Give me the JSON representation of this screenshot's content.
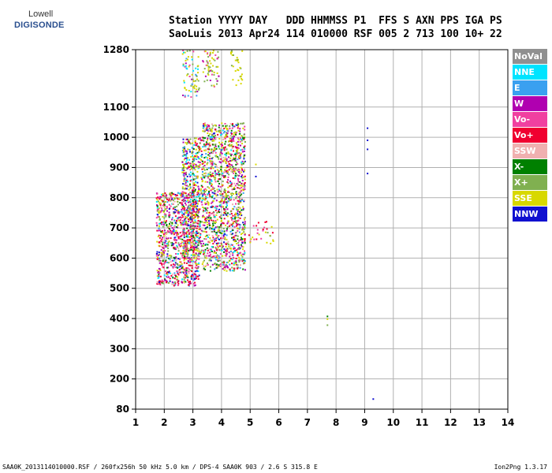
{
  "logo": {
    "line1": "Lowell",
    "line2": "DIGISONDE"
  },
  "header": {
    "line1": "Station YYYY DAY   DDD HHMMSS P1  FFS S AXN PPS IGA PS",
    "line2": "SaoLuis 2013 Apr24 114 010000 RSF 005 2 713 100 10+ 22"
  },
  "footer": {
    "left": "SAA0K_2013114010000.RSF / 260fx256h 50 kHz 5.0 km / DPS-4 SAA0K 903 / 2.6 S 315.8 E",
    "right": "Ion2Png 1.3.17"
  },
  "legend": [
    {
      "label": "NoVal",
      "color": "#909090"
    },
    {
      "label": "NNE",
      "color": "#00e4ff"
    },
    {
      "label": "E",
      "color": "#3aa0f0"
    },
    {
      "label": "W",
      "color": "#b000b0"
    },
    {
      "label": "Vo-",
      "color": "#f040a0"
    },
    {
      "label": "Vo+",
      "color": "#f00030"
    },
    {
      "label": "SSW",
      "color": "#f0b0b0"
    },
    {
      "label": "X-",
      "color": "#008000"
    },
    {
      "label": "X+",
      "color": "#80b050"
    },
    {
      "label": "SSE",
      "color": "#d8d800"
    },
    {
      "label": "NNW",
      "color": "#1010d0"
    }
  ],
  "chart_data": {
    "type": "scatter",
    "xlabel": "",
    "ylabel": "",
    "x_ticks": [
      1,
      2,
      3,
      4,
      5,
      6,
      7,
      8,
      9,
      10,
      11,
      12,
      13,
      14
    ],
    "y_ticks": [
      80,
      200,
      300,
      400,
      500,
      600,
      700,
      800,
      900,
      1000,
      1100,
      1280
    ],
    "xlim": [
      1,
      14
    ],
    "ylim": [
      80,
      1280
    ],
    "grid": true,
    "clusters": [
      {
        "x": [
          1.7,
          3.2
        ],
        "y": [
          510,
          820
        ],
        "weights": {
          "Vo+": 4,
          "Vo-": 3,
          "W": 2,
          "SSE": 2,
          "X+": 2,
          "X-": 1,
          "NNE": 1,
          "E": 1,
          "NNW": 1,
          "SSW": 1
        },
        "count": 900
      },
      {
        "x": [
          2.6,
          3.3
        ],
        "y": [
          600,
          1000
        ],
        "weights": {
          "SSE": 3,
          "X+": 2,
          "W": 2,
          "Vo+": 2,
          "Vo-": 1,
          "X-": 1,
          "NNW": 1,
          "E": 1,
          "NNE": 1
        },
        "count": 500
      },
      {
        "x": [
          3.3,
          4.8
        ],
        "y": [
          560,
          1050
        ],
        "weights": {
          "SSE": 4,
          "X+": 3,
          "X-": 2,
          "Vo+": 2,
          "Vo-": 2,
          "W": 2,
          "NNW": 1,
          "NNE": 1,
          "E": 1,
          "SSW": 1
        },
        "count": 1400
      },
      {
        "x": [
          2.6,
          3.2
        ],
        "y": [
          1130,
          1280
        ],
        "weights": {
          "SSE": 3,
          "X+": 2,
          "W": 1,
          "Vo-": 1,
          "NNE": 1,
          "E": 1
        },
        "count": 70
      },
      {
        "x": [
          3.3,
          3.9
        ],
        "y": [
          1160,
          1280
        ],
        "weights": {
          "SSE": 3,
          "X+": 2,
          "Vo-": 1,
          "W": 1
        },
        "count": 60
      },
      {
        "x": [
          4.3,
          4.7
        ],
        "y": [
          1170,
          1280
        ],
        "weights": {
          "SSE": 3,
          "X+": 1
        },
        "count": 30
      },
      {
        "x": [
          4.9,
          5.8
        ],
        "y": [
          650,
          730
        ],
        "weights": {
          "X+": 2,
          "SSE": 2,
          "Vo-": 1,
          "Vo+": 1
        },
        "count": 30
      }
    ],
    "points": [
      {
        "x": 9.1,
        "y": 1030,
        "label": "NNW"
      },
      {
        "x": 9.1,
        "y": 990,
        "label": "NNW"
      },
      {
        "x": 9.1,
        "y": 960,
        "label": "NNW"
      },
      {
        "x": 9.1,
        "y": 880,
        "label": "NNW"
      },
      {
        "x": 5.2,
        "y": 910,
        "label": "SSE"
      },
      {
        "x": 5.2,
        "y": 870,
        "label": "NNW"
      },
      {
        "x": 7.7,
        "y": 407,
        "label": "X-"
      },
      {
        "x": 7.7,
        "y": 398,
        "label": "SSE"
      },
      {
        "x": 7.7,
        "y": 378,
        "label": "X+"
      },
      {
        "x": 9.3,
        "y": 120,
        "label": "NNW"
      }
    ]
  }
}
